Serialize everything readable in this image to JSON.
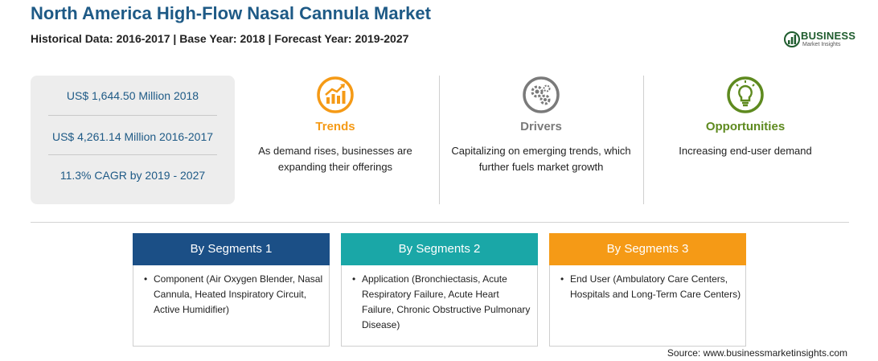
{
  "header": {
    "title": "North America High-Flow Nasal Cannula Market",
    "subtitle": "Historical Data: 2016-2017 | Base Year: 2018 | Forecast Year: 2019-2027"
  },
  "logo": {
    "word": "BUSINESS",
    "sub": "Market Insights",
    "icon": "business-market-insights-logo",
    "color": "#1f5c2e"
  },
  "stats": [
    "US$ 1,644.50 Million 2018",
    "US$ 4,261.14 Million 2016-2017",
    "11.3% CAGR by 2019 - 2027"
  ],
  "columns": [
    {
      "heading": "Trends",
      "text": "As demand rises, businesses are expanding their offerings",
      "icon": "trend-chart-icon",
      "color": "#f59a16"
    },
    {
      "heading": "Drivers",
      "text": "Capitalizing on emerging trends, which further fuels market growth",
      "icon": "gears-icon",
      "color": "#7a7a7a"
    },
    {
      "heading": "Opportunities",
      "text": "Increasing end-user demand",
      "icon": "lightbulb-icon",
      "color": "#5e8a1f"
    }
  ],
  "segments": [
    {
      "title": "By Segments 1",
      "bullet": "•",
      "text": "Component (Air Oxygen Blender, Nasal Cannula, Heated Inspiratory Circuit, Active Humidifier)",
      "color": "#1b4f86"
    },
    {
      "title": "By Segments 2",
      "bullet": "•",
      "text": "Application (Bronchiectasis, Acute Respiratory Failure, Acute Heart Failure, Chronic Obstructive Pulmonary Disease)",
      "color": "#1aa7a7"
    },
    {
      "title": "By Segments 3",
      "bullet": "•",
      "text": "End User (Ambulatory Care Centers, Hospitals and Long-Term Care Centers)",
      "color": "#f59a16"
    }
  ],
  "source": "Source: www.businessmarketinsights.com"
}
